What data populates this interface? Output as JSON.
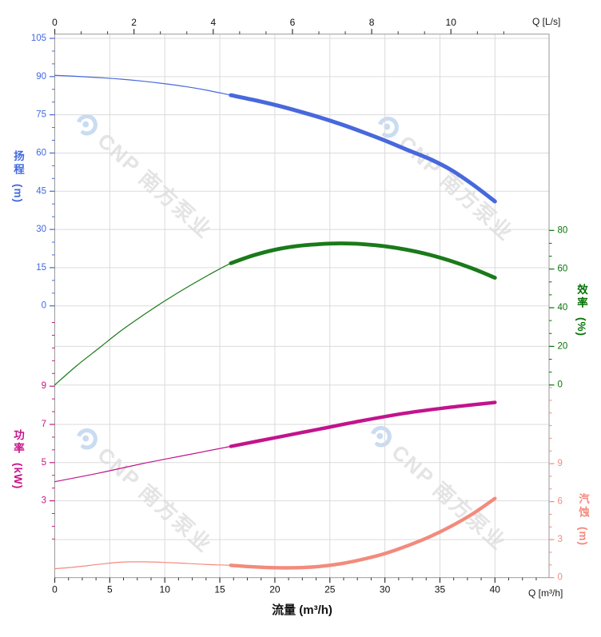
{
  "watermark": {
    "text": "CNP 南方泵业",
    "text_color": "#E4E4E4",
    "logo_color": "#C9DCF1"
  },
  "chart_data": {
    "type": "line",
    "title": "",
    "grid": true,
    "x_axis_bottom": {
      "label": "流量 (m³/h)",
      "unit_label": "Q [m³/h]",
      "unit": "m³/h",
      "ticks": [
        0,
        5,
        10,
        15,
        20,
        25,
        30,
        35,
        40
      ],
      "minor_step": 1.25,
      "minor_range": [
        0,
        43.75
      ],
      "range": [
        0,
        44.9
      ]
    },
    "x_axis_top": {
      "unit_label": "Q [L/s]",
      "unit": "L/s",
      "ticks": [
        0,
        2,
        4,
        6,
        8,
        10
      ],
      "minor_step": 0.6667,
      "minor_range": [
        0,
        11.34
      ],
      "range": [
        0,
        12.47
      ]
    },
    "y_axes": [
      {
        "id": "head",
        "label": "扬程",
        "unit": "(m)",
        "color": "#4169E1",
        "ticks": [
          105,
          90,
          75,
          60,
          45,
          30,
          15,
          0
        ],
        "minor_step": 5,
        "minor_range": [
          0,
          105
        ]
      },
      {
        "id": "efficiency",
        "label": "效率",
        "unit": "(%)",
        "color": "#067306",
        "ticks": [
          80,
          60,
          40,
          20,
          0
        ],
        "minor_step": 6.667,
        "minor_range": [
          0,
          80
        ]
      },
      {
        "id": "power",
        "label": "功率",
        "unit": "(kW)",
        "color": "#C7158A",
        "ticks": [
          9,
          7,
          5,
          3
        ],
        "minor_step": 0.6667,
        "minor_range": [
          1,
          13
        ]
      },
      {
        "id": "npsh",
        "label": "汽蚀",
        "unit": "(m)",
        "color": "#F4897C",
        "ticks": [
          9,
          6,
          3,
          0
        ],
        "minor_step": 1,
        "minor_range": [
          0,
          15
        ]
      }
    ],
    "series": [
      {
        "id": "head",
        "name": "扬程 (m)",
        "axis": "head",
        "color": "#4868DC",
        "bold_from": 16,
        "thin_width": 1.2,
        "bold_width": 5,
        "points": [
          [
            0,
            90.5
          ],
          [
            2,
            90.1
          ],
          [
            4,
            89.6
          ],
          [
            6,
            89.0
          ],
          [
            8,
            88.2
          ],
          [
            10,
            87.2
          ],
          [
            12,
            86.0
          ],
          [
            14,
            84.5
          ],
          [
            16,
            82.7
          ],
          [
            18,
            80.9
          ],
          [
            20,
            78.9
          ],
          [
            22,
            76.6
          ],
          [
            24,
            74.1
          ],
          [
            26,
            71.3
          ],
          [
            28,
            68.2
          ],
          [
            30,
            64.9
          ],
          [
            32,
            61.3
          ],
          [
            34,
            57.8
          ],
          [
            36,
            53.4
          ],
          [
            38,
            47.6
          ],
          [
            40,
            41.0
          ]
        ]
      },
      {
        "id": "efficiency",
        "name": "效率 (%)",
        "axis": "efficiency",
        "color": "#1A7A1A",
        "bold_from": 16,
        "thin_width": 1.2,
        "bold_width": 4.8,
        "points": [
          [
            0,
            0
          ],
          [
            2,
            10
          ],
          [
            4,
            19
          ],
          [
            6,
            28
          ],
          [
            8,
            36
          ],
          [
            10,
            43.5
          ],
          [
            12,
            50.5
          ],
          [
            14,
            57
          ],
          [
            16,
            63
          ],
          [
            18,
            67
          ],
          [
            20,
            70
          ],
          [
            22,
            71.9
          ],
          [
            24,
            72.9
          ],
          [
            26,
            73.3
          ],
          [
            28,
            72.9
          ],
          [
            30,
            71.8
          ],
          [
            32,
            70
          ],
          [
            34,
            67.5
          ],
          [
            36,
            64.2
          ],
          [
            38,
            60.2
          ],
          [
            40,
            55.5
          ]
        ]
      },
      {
        "id": "power",
        "name": "功率 (kW)",
        "axis": "power",
        "color": "#C2148C",
        "bold_from": 16,
        "thin_width": 1.2,
        "bold_width": 4.4,
        "points": [
          [
            0,
            4.0
          ],
          [
            4,
            4.45
          ],
          [
            8,
            4.95
          ],
          [
            12,
            5.4
          ],
          [
            16,
            5.85
          ],
          [
            20,
            6.3
          ],
          [
            24,
            6.75
          ],
          [
            28,
            7.2
          ],
          [
            32,
            7.6
          ],
          [
            36,
            7.9
          ],
          [
            40,
            8.15
          ]
        ]
      },
      {
        "id": "npsh",
        "name": "汽蚀 (m)",
        "axis": "npsh",
        "color": "#F28B7D",
        "bold_from": 16,
        "thin_width": 1.2,
        "bold_width": 4.4,
        "points": [
          [
            0,
            0.7
          ],
          [
            2,
            0.85
          ],
          [
            4,
            1.05
          ],
          [
            6,
            1.22
          ],
          [
            8,
            1.25
          ],
          [
            10,
            1.2
          ],
          [
            12,
            1.12
          ],
          [
            14,
            1.03
          ],
          [
            16,
            0.97
          ],
          [
            18,
            0.85
          ],
          [
            20,
            0.78
          ],
          [
            22,
            0.78
          ],
          [
            24,
            0.88
          ],
          [
            26,
            1.1
          ],
          [
            28,
            1.45
          ],
          [
            30,
            1.9
          ],
          [
            32,
            2.5
          ],
          [
            34,
            3.2
          ],
          [
            36,
            4.05
          ],
          [
            38,
            5.05
          ],
          [
            40,
            6.25
          ]
        ]
      }
    ]
  }
}
